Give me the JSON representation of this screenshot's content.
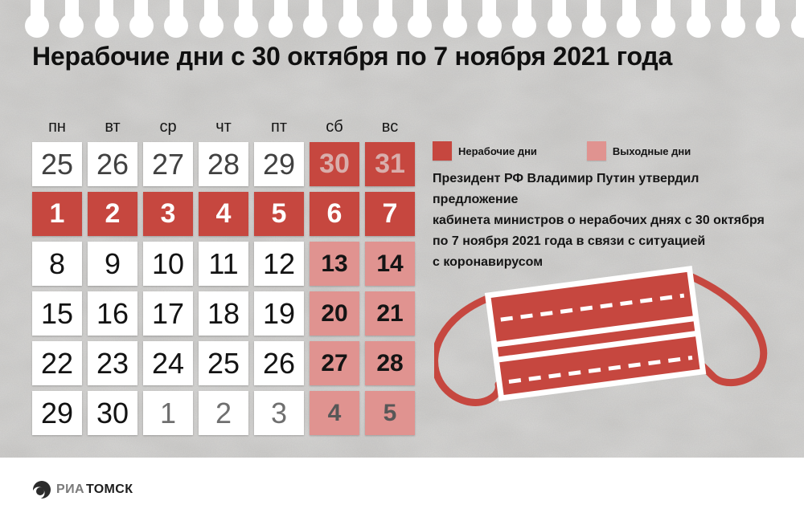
{
  "title": "Нерабочие дни с 30 октября по 7 ноября 2021 года",
  "legend": {
    "nonworking_label": "Нерабочие дни",
    "weekend_label": "Выходные дни"
  },
  "description_lines": [
    "Президент РФ Владимир Путин утвердил предложение",
    "кабинета министров о нерабочих днях с 30 октября",
    "по 7 ноября 2021 года в связи с ситуацией",
    "с коронавирусом"
  ],
  "calendar": {
    "day_headers": [
      "пн",
      "вт",
      "ср",
      "чт",
      "пт",
      "сб",
      "вс"
    ],
    "weeks": [
      [
        {
          "d": "25",
          "s": "oct"
        },
        {
          "d": "26",
          "s": "oct"
        },
        {
          "d": "27",
          "s": "oct"
        },
        {
          "d": "28",
          "s": "oct"
        },
        {
          "d": "29",
          "s": "oct"
        },
        {
          "d": "30",
          "s": "red-dim"
        },
        {
          "d": "31",
          "s": "red-dim"
        }
      ],
      [
        {
          "d": "1",
          "s": "red"
        },
        {
          "d": "2",
          "s": "red"
        },
        {
          "d": "3",
          "s": "red"
        },
        {
          "d": "4",
          "s": "red"
        },
        {
          "d": "5",
          "s": "red"
        },
        {
          "d": "6",
          "s": "red"
        },
        {
          "d": "7",
          "s": "red"
        }
      ],
      [
        {
          "d": "8",
          "s": "nov"
        },
        {
          "d": "9",
          "s": "nov"
        },
        {
          "d": "10",
          "s": "nov"
        },
        {
          "d": "11",
          "s": "nov"
        },
        {
          "d": "12",
          "s": "nov"
        },
        {
          "d": "13",
          "s": "pink"
        },
        {
          "d": "14",
          "s": "pink"
        }
      ],
      [
        {
          "d": "15",
          "s": "nov"
        },
        {
          "d": "16",
          "s": "nov"
        },
        {
          "d": "17",
          "s": "nov"
        },
        {
          "d": "18",
          "s": "nov"
        },
        {
          "d": "19",
          "s": "nov"
        },
        {
          "d": "20",
          "s": "pink"
        },
        {
          "d": "21",
          "s": "pink"
        }
      ],
      [
        {
          "d": "22",
          "s": "nov"
        },
        {
          "d": "23",
          "s": "nov"
        },
        {
          "d": "24",
          "s": "nov"
        },
        {
          "d": "25",
          "s": "nov"
        },
        {
          "d": "26",
          "s": "nov"
        },
        {
          "d": "27",
          "s": "pink"
        },
        {
          "d": "28",
          "s": "pink"
        }
      ],
      [
        {
          "d": "29",
          "s": "nov"
        },
        {
          "d": "30",
          "s": "nov"
        },
        {
          "d": "1",
          "s": "dec"
        },
        {
          "d": "2",
          "s": "dec"
        },
        {
          "d": "3",
          "s": "dec"
        },
        {
          "d": "4",
          "s": "pink-dim"
        },
        {
          "d": "5",
          "s": "pink-dim"
        }
      ]
    ]
  },
  "colors": {
    "red": "#c6473f",
    "pink": "#e09390",
    "red_dim_text": "#d9aeab",
    "paper": "#c9c8c6"
  },
  "icons": {
    "mask": "medical-mask-icon",
    "logo": "ria-logo-icon"
  },
  "logo": {
    "ria": "РИА",
    "tomsk": "ТОМСК"
  }
}
